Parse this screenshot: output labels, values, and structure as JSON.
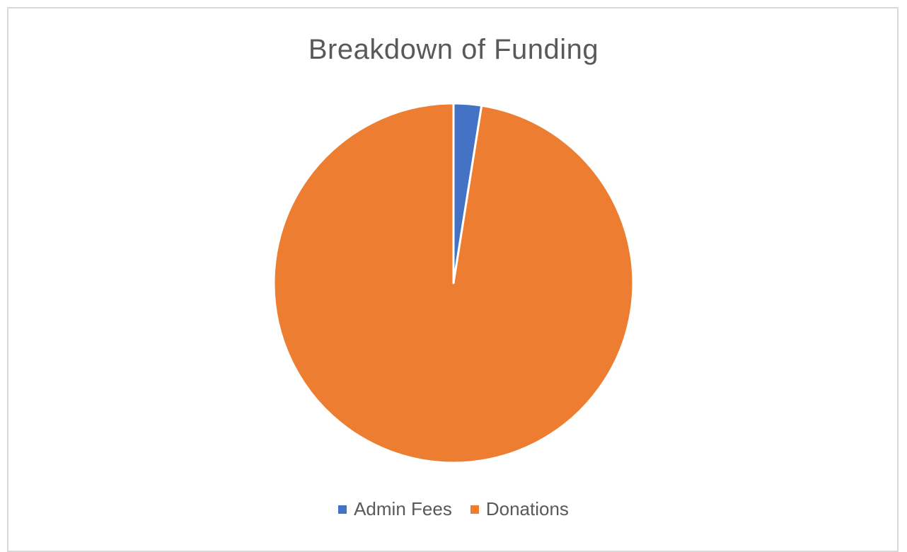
{
  "chart_data": {
    "type": "pie",
    "title": "Breakdown of Funding",
    "slices": [
      {
        "label": "Admin Fees",
        "value": 2.5,
        "color": "#4472c4"
      },
      {
        "label": "Donations",
        "value": 97.5,
        "color": "#ed7d31"
      }
    ],
    "legend_position": "bottom"
  }
}
